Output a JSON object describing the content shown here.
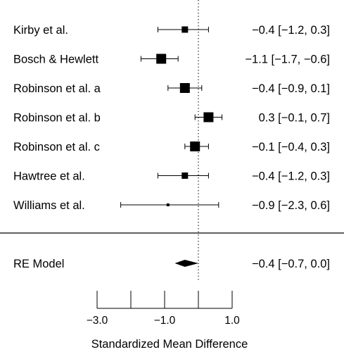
{
  "chart_data": {
    "type": "forest",
    "xlabel": "Standardized Mean Difference",
    "xlim": [
      -3.0,
      1.0
    ],
    "x_ticks": [
      -3.0,
      -2.0,
      -1.0,
      0.0,
      1.0
    ],
    "x_tick_labels": [
      "−3.0",
      "",
      "−1.0",
      "",
      "1.0"
    ],
    "reference_line": 0,
    "studies": [
      {
        "label": "Kirby et al.",
        "estimate": -0.4,
        "lower": -1.2,
        "upper": 0.3,
        "text": "−0.4 [−1.2,  0.3]",
        "marker": "small"
      },
      {
        "label": "Bosch & Hewlett",
        "estimate": -1.1,
        "lower": -1.7,
        "upper": -0.6,
        "text": "−1.1 [−1.7, −0.6]",
        "marker": "large"
      },
      {
        "label": "Robinson et al. a",
        "estimate": -0.4,
        "lower": -0.9,
        "upper": 0.1,
        "text": "−0.4 [−0.9,  0.1]",
        "marker": "large"
      },
      {
        "label": "Robinson et al. b",
        "estimate": 0.3,
        "lower": -0.1,
        "upper": 0.7,
        "text": "0.3 [−0.1,  0.7]",
        "marker": "large"
      },
      {
        "label": "Robinson et al. c",
        "estimate": -0.1,
        "lower": -0.4,
        "upper": 0.3,
        "text": "−0.1 [−0.4,  0.3]",
        "marker": "large"
      },
      {
        "label": "Hawtree et al.",
        "estimate": -0.4,
        "lower": -1.2,
        "upper": 0.3,
        "text": "−0.4 [−1.2,  0.3]",
        "marker": "small"
      },
      {
        "label": "Williams et al.",
        "estimate": -0.9,
        "lower": -2.3,
        "upper": 0.6,
        "text": "−0.9 [−2.3,  0.6]",
        "marker": "tiny"
      }
    ],
    "summary": {
      "label": "RE Model",
      "estimate": -0.4,
      "lower": -0.7,
      "upper": 0.0,
      "text": "−0.4 [−0.7,  0.0]"
    },
    "colors": {
      "ink": "#000000",
      "background": "#ffffff"
    }
  }
}
